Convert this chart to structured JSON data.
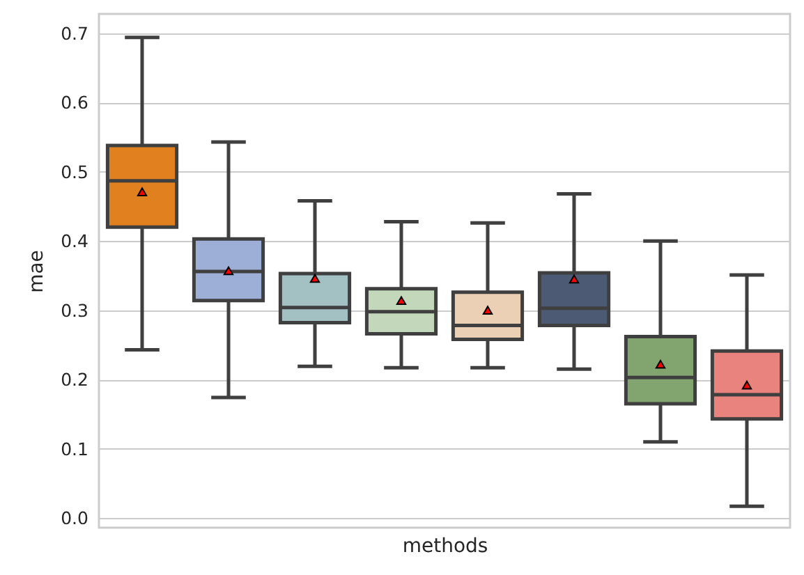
{
  "chart_data": {
    "type": "box",
    "categories": [
      null,
      null,
      null,
      null,
      null,
      null,
      null,
      null
    ],
    "xlabel": "methods",
    "ylabel": "mae",
    "ylim": [
      -0.014,
      0.728
    ],
    "yticks": [
      {
        "value": 0,
        "label": "0.0"
      },
      0.1,
      0.2,
      0.3,
      0.4,
      0.5,
      0.6,
      0.7
    ],
    "grid": "y",
    "marker": "triangle",
    "colors": [
      "#e0801f",
      "#9dafd6",
      "#a3c1c3",
      "#c3d8bb",
      "#ecd0b6",
      "#4d5a74",
      "#82a56f",
      "#e8837e"
    ],
    "boxes": [
      {
        "low": 0.243,
        "q1": 0.42,
        "median": 0.487,
        "q3": 0.538,
        "high": 0.694,
        "mean": 0.471
      },
      {
        "low": 0.174,
        "q1": 0.314,
        "median": 0.356,
        "q3": 0.403,
        "high": 0.543,
        "mean": 0.357
      },
      {
        "low": 0.219,
        "q1": 0.282,
        "median": 0.304,
        "q3": 0.353,
        "high": 0.458,
        "mean": 0.346
      },
      {
        "low": 0.217,
        "q1": 0.266,
        "median": 0.298,
        "q3": 0.331,
        "high": 0.428,
        "mean": 0.314
      },
      {
        "low": 0.217,
        "q1": 0.258,
        "median": 0.278,
        "q3": 0.326,
        "high": 0.426,
        "mean": 0.3
      },
      {
        "low": 0.215,
        "q1": 0.278,
        "median": 0.303,
        "q3": 0.354,
        "high": 0.468,
        "mean": 0.345
      },
      {
        "low": 0.11,
        "q1": 0.165,
        "median": 0.203,
        "q3": 0.262,
        "high": 0.4,
        "mean": 0.222
      },
      {
        "low": 0.017,
        "q1": 0.143,
        "median": 0.178,
        "q3": 0.241,
        "high": 0.351,
        "mean": 0.192
      }
    ]
  }
}
